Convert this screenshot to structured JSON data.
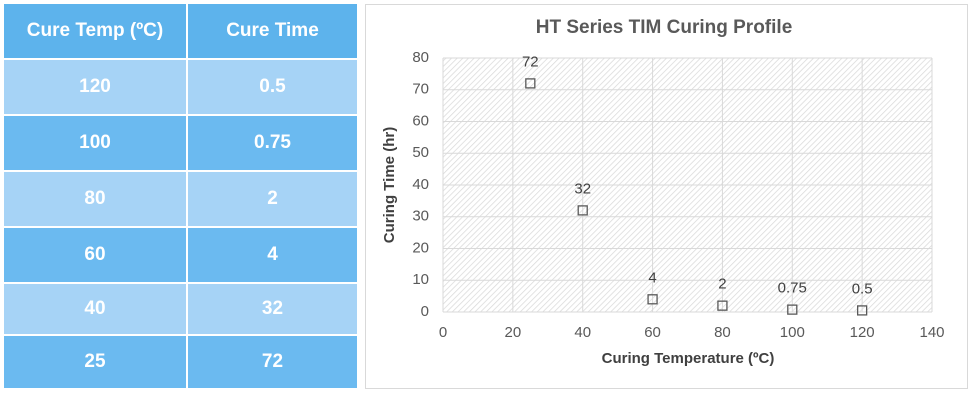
{
  "table": {
    "header": [
      "Cure Temp (ºC)",
      "Cure Time"
    ],
    "rows": [
      [
        120,
        0.5
      ],
      [
        100,
        0.75
      ],
      [
        80,
        2
      ],
      [
        60,
        4
      ],
      [
        40,
        32
      ],
      [
        25,
        72
      ]
    ]
  },
  "chart_data": {
    "type": "scatter",
    "title": "HT Series TIM Curing Profile",
    "x_label": "Curing Temperature (ºC)",
    "y_label": "Curing Time  (hr)",
    "x": [
      25,
      40,
      60,
      80,
      100,
      120
    ],
    "values": [
      72,
      32,
      4,
      2,
      0.75,
      0.5
    ],
    "color": "#595959",
    "xlim": [
      0,
      140
    ],
    "xticks": [
      0,
      20,
      40,
      60,
      80,
      100,
      120,
      140
    ],
    "ylim": [
      0,
      80
    ],
    "yticks": [
      0,
      10,
      20,
      30,
      40,
      50,
      60,
      70,
      80
    ],
    "grid": true
  }
}
